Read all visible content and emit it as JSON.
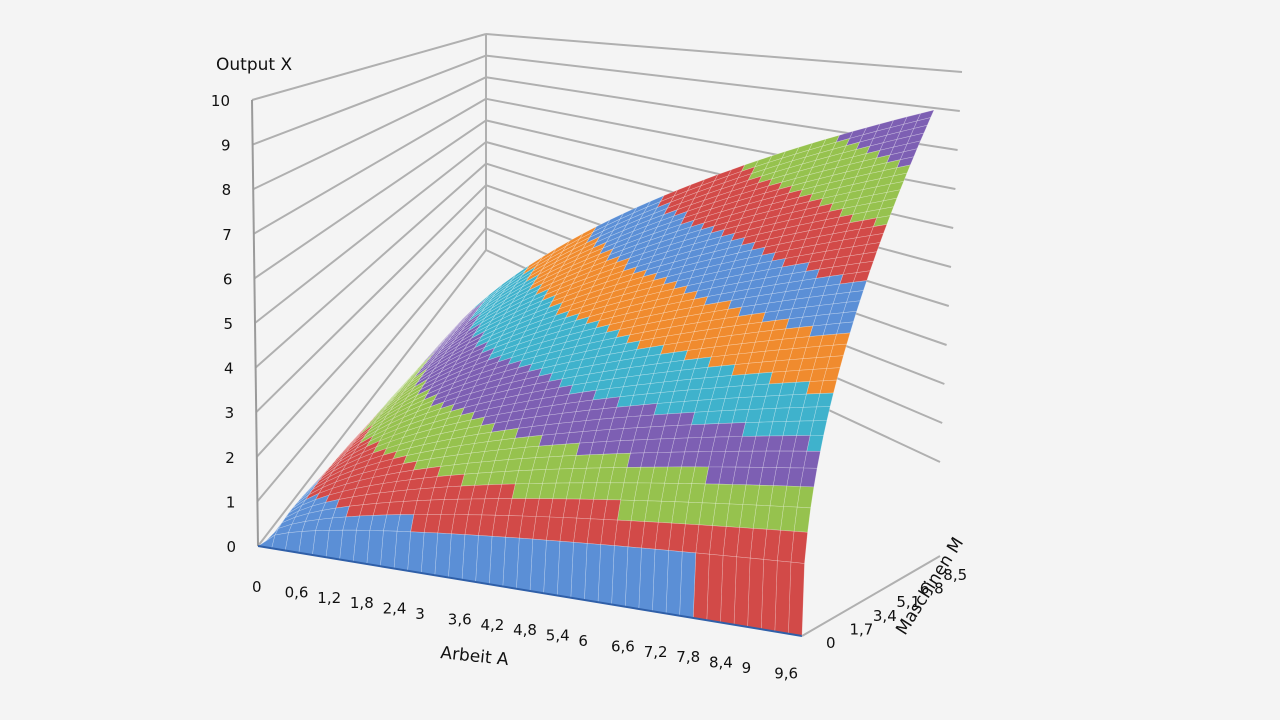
{
  "chart_data": {
    "type": "surface",
    "z_title": "Output X",
    "x_title": "Arbeit A",
    "y_title": "Maschinen M",
    "z_ticks": [
      "0",
      "1",
      "2",
      "3",
      "4",
      "5",
      "6",
      "7",
      "8",
      "9",
      "10"
    ],
    "x_ticks": [
      "0",
      "0,6",
      "1,2",
      "1,8",
      "2,4",
      "3",
      "3,6",
      "4,2",
      "4,8",
      "5,4",
      "6",
      "6,6",
      "7,2",
      "7,8",
      "8,4",
      "9",
      "9,6"
    ],
    "y_ticks": [
      "0",
      "1,7",
      "3,4",
      "5,1",
      "6,8",
      "8,5"
    ],
    "zlim": [
      0,
      10
    ],
    "xlim": [
      0,
      10
    ],
    "ylim": [
      0,
      10
    ],
    "band_step": 1,
    "colors": [
      "#5b8fd6",
      "#d24a48",
      "#96c24e",
      "#7d5fb3",
      "#3fb2cc",
      "#f08b2e",
      "#5b8fd6",
      "#d24a48",
      "#96c24e",
      "#7d5fb3"
    ],
    "grid": true
  }
}
